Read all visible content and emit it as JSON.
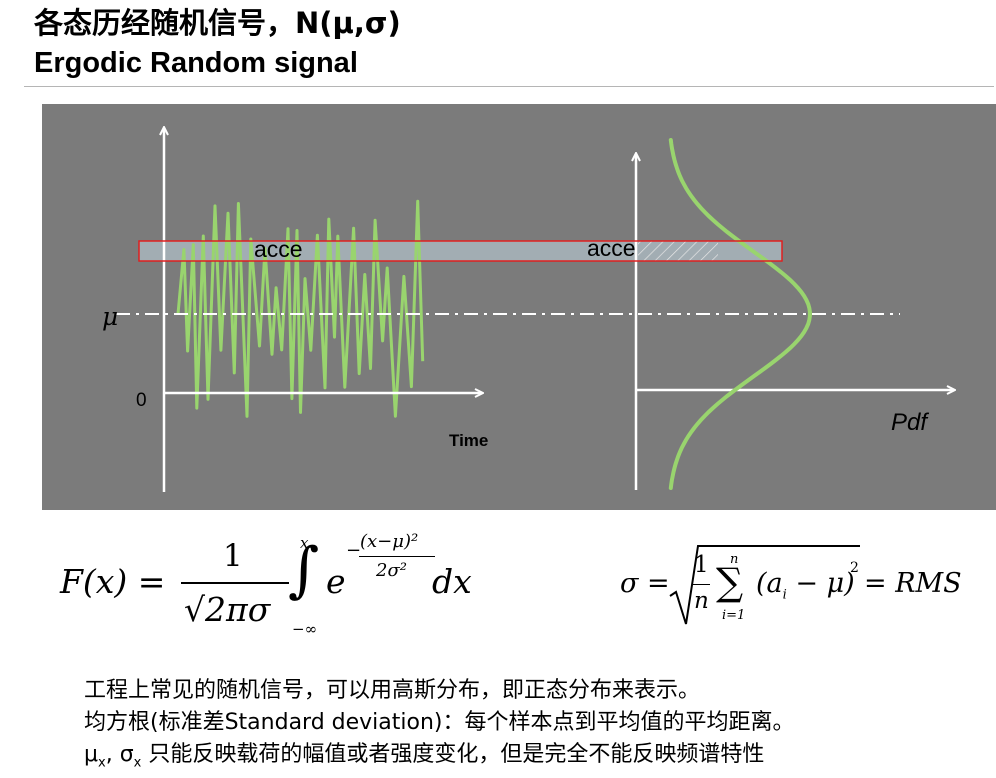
{
  "header": {
    "title_cn": "各态历经随机信号，N(μ,σ)",
    "title_en": "Ergodic Random signal"
  },
  "figure": {
    "left_axis_label": "acce",
    "right_axis_label": "acce",
    "mean_label": "μ",
    "zero_label": "0",
    "time_label": "Time",
    "pdf_label": "Pdf",
    "colors": {
      "panel": "#7b7b7b",
      "signal": "#99d46e",
      "band_border": "#e02020",
      "axis": "#ffffff"
    }
  },
  "formulas": {
    "cdf": {
      "lhs": "F(x) =",
      "numerator": "1",
      "denominator": "√2πσ",
      "upper_limit": "x",
      "lower_limit": "−∞",
      "base": "e",
      "exp_numerator": "(x−μ)²",
      "exp_denominator": "2σ²",
      "exp_sign": "−",
      "dx": "dx"
    },
    "rms": {
      "lhs": "σ =",
      "frac_num": "1",
      "frac_den": "n",
      "sum_upper": "n",
      "sum_lower": "i=1",
      "term": "(a",
      "term_sub": "i",
      "term_rest": " − μ)",
      "power": "2",
      "rhs": "= RMS"
    }
  },
  "notes": {
    "line1": "工程上常见的随机信号，可以用高斯分布，即正态分布来表示。",
    "line2": "均方根(标准差Standard deviation)：每个样本点到平均值的平均距离。",
    "line3_mu": "μ",
    "line3_mu_sub": "x",
    "line3_sep": ", ",
    "line3_sigma": "σ",
    "line3_sigma_sub": "x",
    "line3_text": " 只能反映载荷的幅值或者强度变化，但是完全不能反映频谱特性"
  }
}
